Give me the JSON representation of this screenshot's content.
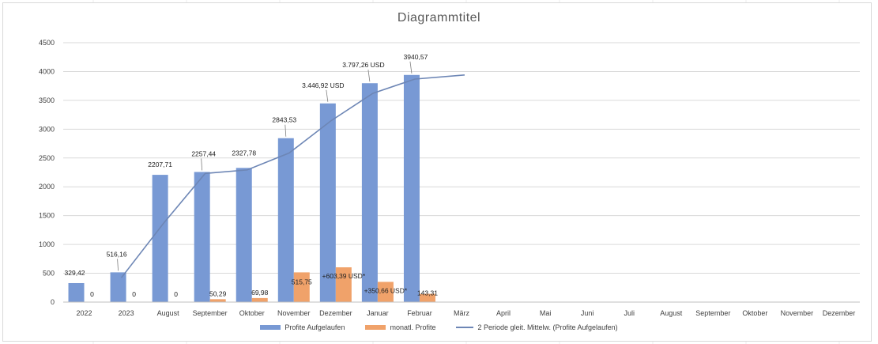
{
  "colors": {
    "bar_cumulative": "#7899d4",
    "bar_monthly": "#f0a26a",
    "trendline": "#6d86b5",
    "gridline": "#d9d9d9"
  },
  "legend": {
    "items": [
      {
        "label": "Profite Aufgelaufen"
      },
      {
        "label": "monatl. Profite"
      },
      {
        "label": "2 Periode gleit. Mittelw. (Profite Aufgelaufen)"
      }
    ]
  },
  "chart_data": {
    "type": "bar",
    "title": "Diagrammtitel",
    "xlabel": "",
    "ylabel": "",
    "ylim": [
      0,
      4500
    ],
    "yticks": [
      0,
      500,
      1000,
      1500,
      2000,
      2500,
      3000,
      3500,
      4000,
      4500
    ],
    "grid": true,
    "legend_position": "bottom",
    "categories": [
      "2022",
      "2023",
      "August",
      "September",
      "Oktober",
      "November",
      "Dezember",
      "Januar",
      "Februar",
      "März",
      "April",
      "Mai",
      "Juni",
      "Juli",
      "August",
      "September",
      "Oktober",
      "November",
      "Dezember"
    ],
    "series": [
      {
        "name": "Profite Aufgelaufen",
        "type": "bar",
        "values": [
          329.42,
          516.16,
          2207.71,
          2257.44,
          2327.78,
          2843.53,
          3446.92,
          3797.26,
          3940.57,
          null,
          null,
          null,
          null,
          null,
          null,
          null,
          null,
          null,
          null
        ],
        "labels": [
          "329,42",
          "516,16",
          "2207,71",
          "2257,44",
          "2327,78",
          "2843,53",
          "3.446,92 USD",
          "3.797,26 USD",
          "3940,57"
        ]
      },
      {
        "name": "monatl. Profite",
        "type": "bar",
        "values": [
          0,
          0,
          0,
          50.29,
          69.98,
          515.75,
          603.39,
          350.66,
          143.31,
          null,
          null,
          null,
          null,
          null,
          null,
          null,
          null,
          null,
          null
        ],
        "labels": [
          "0",
          "0",
          "0",
          "50,29",
          "69,98",
          "515,75",
          "+603,39 USD*",
          "+350,66 USD*",
          "143,31"
        ]
      },
      {
        "name": "2 Periode gleit. Mittelw. (Profite Aufgelaufen)",
        "type": "line",
        "values": [
          null,
          422.79,
          1361.94,
          2232.58,
          2292.61,
          2585.66,
          3145.23,
          3622.09,
          3868.92,
          3940.57,
          null,
          null,
          null,
          null,
          null,
          null,
          null,
          null,
          null
        ]
      }
    ]
  }
}
